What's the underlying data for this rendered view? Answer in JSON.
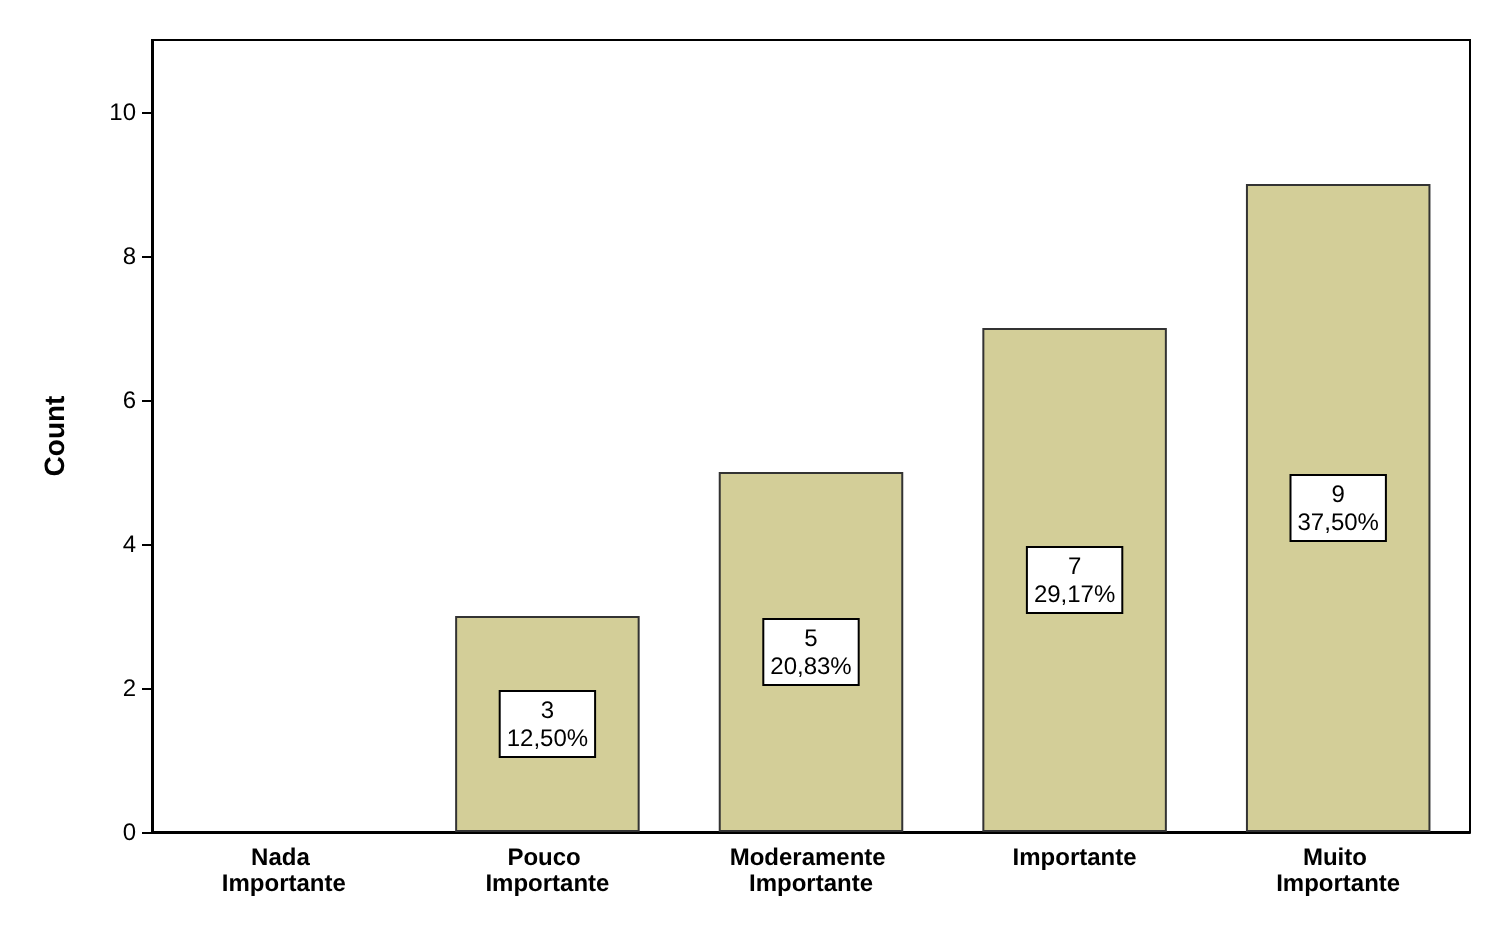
{
  "chart_data": {
    "type": "bar",
    "ylabel": "Count",
    "categories": [
      "Nada Importante",
      "Pouco Importante",
      "Moderamente Importante",
      "Importante",
      "Muito Importante"
    ],
    "values": [
      0,
      3,
      5,
      7,
      9
    ],
    "value_labels": [
      null,
      "3\n12,50%",
      "5\n20,83%",
      "7\n29,17%",
      "9\n37,50%"
    ],
    "color": "#d3ce98",
    "ylim": [
      0,
      11
    ],
    "yticks": [
      0,
      2,
      4,
      6,
      8,
      10
    ],
    "grid": false
  }
}
